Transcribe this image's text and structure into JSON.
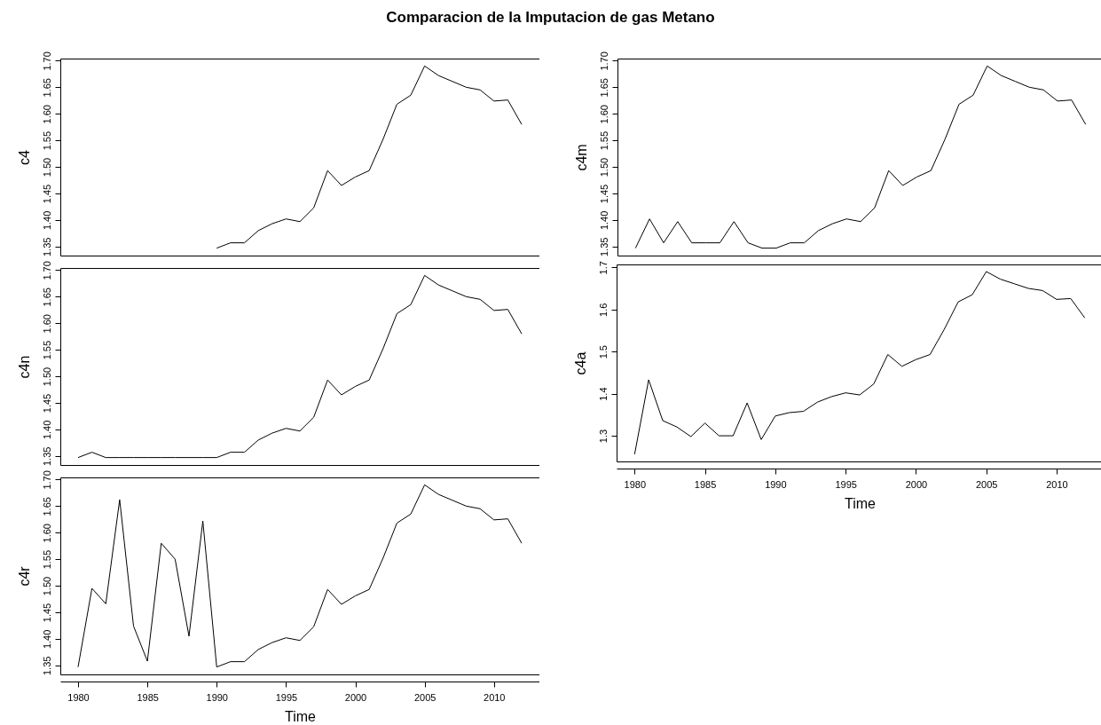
{
  "chart_data": [
    {
      "type": "line",
      "title": "Comparacion de la Imputacion de gas Metano",
      "ylabel": "c4",
      "tick_labels": "y",
      "x": [
        1990,
        1991,
        1992,
        1993,
        1994,
        1995,
        1996,
        1997,
        1998,
        1999,
        2000,
        2001,
        2002,
        2003,
        2004,
        2005,
        2006,
        2007,
        2008,
        2009,
        2010,
        2011,
        2012
      ],
      "values": [
        1.347,
        1.357,
        1.357,
        1.38,
        1.393,
        1.402,
        1.397,
        1.423,
        1.493,
        1.465,
        1.481,
        1.493,
        1.552,
        1.618,
        1.635,
        1.69,
        1.672,
        1.661,
        1.65,
        1.645,
        1.624,
        1.626,
        1.58
      ],
      "color": "#000000",
      "xlim": [
        1978.72,
        2013.28
      ],
      "ylim": [
        1.333,
        1.704
      ],
      "yticks": [
        1.35,
        {
          "value": 1.4,
          "label": "1.40"
        },
        1.45,
        {
          "value": 1.5,
          "label": "1.50"
        },
        1.55,
        {
          "value": 1.6,
          "label": "1.60"
        },
        1.65,
        {
          "value": 1.7,
          "label": "1.70"
        }
      ]
    },
    {
      "type": "line",
      "ylabel": "c4n",
      "tick_labels": "y",
      "x": [
        1980,
        1981,
        1982,
        1983,
        1984,
        1985,
        1986,
        1987,
        1988,
        1989,
        1990,
        1991,
        1992,
        1993,
        1994,
        1995,
        1996,
        1997,
        1998,
        1999,
        2000,
        2001,
        2002,
        2003,
        2004,
        2005,
        2006,
        2007,
        2008,
        2009,
        2010,
        2011,
        2012
      ],
      "values": [
        1.347,
        1.357,
        1.347,
        1.347,
        1.347,
        1.347,
        1.347,
        1.347,
        1.347,
        1.347,
        1.347,
        1.357,
        1.357,
        1.38,
        1.393,
        1.402,
        1.397,
        1.423,
        1.493,
        1.465,
        1.481,
        1.493,
        1.552,
        1.618,
        1.635,
        1.69,
        1.672,
        1.661,
        1.65,
        1.645,
        1.624,
        1.626,
        1.58
      ],
      "color": "#000000",
      "xlim": [
        1978.72,
        2013.28
      ],
      "ylim": [
        1.333,
        1.704
      ],
      "yticks": [
        1.35,
        {
          "value": 1.4,
          "label": "1.40"
        },
        1.45,
        {
          "value": 1.5,
          "label": "1.50"
        },
        1.55,
        {
          "value": 1.6,
          "label": "1.60"
        },
        1.65,
        {
          "value": 1.7,
          "label": "1.70"
        }
      ]
    },
    {
      "type": "line",
      "ylabel": "c4r",
      "xlabel": "Time",
      "x": [
        1980,
        1981,
        1982,
        1983,
        1984,
        1985,
        1986,
        1987,
        1988,
        1989,
        1990,
        1991,
        1992,
        1993,
        1994,
        1995,
        1996,
        1997,
        1998,
        1999,
        2000,
        2001,
        2002,
        2003,
        2004,
        2005,
        2006,
        2007,
        2008,
        2009,
        2010,
        2011,
        2012
      ],
      "values": [
        1.347,
        1.495,
        1.466,
        1.662,
        1.424,
        1.358,
        1.58,
        1.55,
        1.405,
        1.622,
        1.347,
        1.357,
        1.357,
        1.38,
        1.393,
        1.402,
        1.397,
        1.423,
        1.493,
        1.465,
        1.481,
        1.493,
        1.552,
        1.618,
        1.635,
        1.69,
        1.672,
        1.661,
        1.65,
        1.645,
        1.624,
        1.626,
        1.58
      ],
      "color": "#000000",
      "xlim": [
        1978.72,
        2013.28
      ],
      "xticks": [
        1980,
        1985,
        1990,
        1995,
        2000,
        2005,
        2010
      ],
      "ylim": [
        1.333,
        1.704
      ],
      "yticks": [
        1.35,
        {
          "value": 1.4,
          "label": "1.40"
        },
        1.45,
        {
          "value": 1.5,
          "label": "1.50"
        },
        1.55,
        {
          "value": 1.6,
          "label": "1.60"
        },
        1.65,
        {
          "value": 1.7,
          "label": "1.70"
        }
      ]
    },
    {
      "type": "line",
      "ylabel": "c4m",
      "tick_labels": "y",
      "x": [
        1980,
        1981,
        1982,
        1983,
        1984,
        1985,
        1986,
        1987,
        1988,
        1989,
        1990,
        1991,
        1992,
        1993,
        1994,
        1995,
        1996,
        1997,
        1998,
        1999,
        2000,
        2001,
        2002,
        2003,
        2004,
        2005,
        2006,
        2007,
        2008,
        2009,
        2010,
        2011,
        2012
      ],
      "values": [
        1.347,
        1.402,
        1.357,
        1.397,
        1.357,
        1.357,
        1.357,
        1.397,
        1.357,
        1.347,
        1.347,
        1.357,
        1.357,
        1.38,
        1.393,
        1.402,
        1.397,
        1.423,
        1.493,
        1.465,
        1.481,
        1.493,
        1.552,
        1.618,
        1.635,
        1.69,
        1.672,
        1.661,
        1.65,
        1.645,
        1.624,
        1.626,
        1.58
      ],
      "color": "#000000",
      "xlim": [
        1978.72,
        2013.28
      ],
      "ylim": [
        1.333,
        1.704
      ],
      "yticks": [
        1.35,
        {
          "value": 1.4,
          "label": "1.40"
        },
        1.45,
        {
          "value": 1.5,
          "label": "1.50"
        },
        1.55,
        {
          "value": 1.6,
          "label": "1.60"
        },
        1.65,
        {
          "value": 1.7,
          "label": "1.70"
        }
      ]
    },
    {
      "type": "line",
      "ylabel": "c4a",
      "xlabel": "Time",
      "x": [
        1980,
        1981,
        1982,
        1983,
        1984,
        1985,
        1986,
        1987,
        1988,
        1989,
        1990,
        1991,
        1992,
        1993,
        1994,
        1995,
        1996,
        1997,
        1998,
        1999,
        2000,
        2001,
        2002,
        2003,
        2004,
        2005,
        2006,
        2007,
        2008,
        2009,
        2010,
        2011,
        2012
      ],
      "values": [
        1.256,
        1.433,
        1.336,
        1.321,
        1.298,
        1.33,
        1.3,
        1.3,
        1.378,
        1.291,
        1.347,
        1.355,
        1.358,
        1.38,
        1.393,
        1.402,
        1.397,
        1.423,
        1.493,
        1.465,
        1.481,
        1.493,
        1.552,
        1.618,
        1.635,
        1.69,
        1.672,
        1.661,
        1.65,
        1.645,
        1.624,
        1.626,
        1.58
      ],
      "color": "#000000",
      "xlim": [
        1978.72,
        2013.28
      ],
      "xticks": [
        1980,
        1985,
        1990,
        1995,
        2000,
        2005,
        2010
      ],
      "ylim": [
        1.239,
        1.707
      ],
      "yticks": [
        1.3,
        1.4,
        1.5,
        1.6,
        1.7
      ]
    }
  ]
}
